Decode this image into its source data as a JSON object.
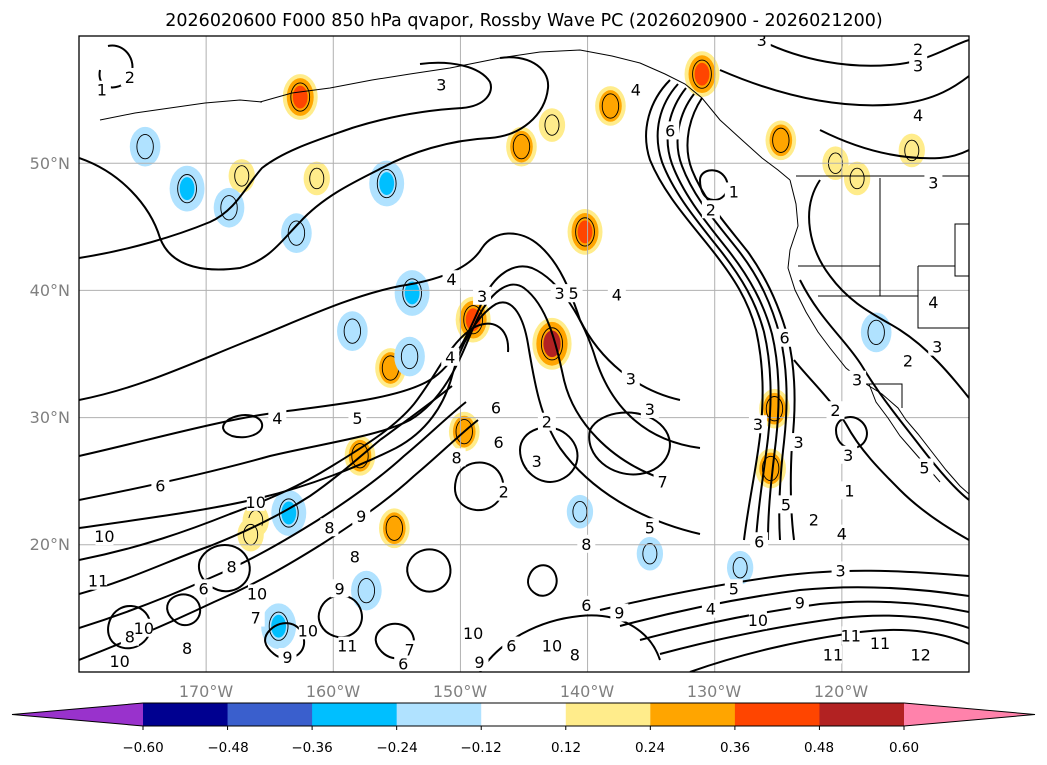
{
  "chart_data": {
    "type": "contour_map",
    "title": "2026020600 F000 850 hPa qvapor, Rossby Wave PC (2026020900 - 2026021200)",
    "variable": "850 hPa qvapor",
    "init_time": "2026020600",
    "forecast_hour": "F000",
    "filter": "Rossby Wave PC",
    "valid_window": "2026020900 - 2026021200",
    "lon_range": [
      -180,
      -110
    ],
    "lat_range": [
      10,
      60
    ],
    "lon_ticks": [
      -170,
      -160,
      -150,
      -140,
      -130,
      -120
    ],
    "lat_ticks": [
      20,
      30,
      40,
      50
    ],
    "x_tick_labels": [
      "170°W",
      "160°W",
      "150°W",
      "140°W",
      "130°W",
      "120°W"
    ],
    "y_tick_labels": [
      "20°N",
      "30°N",
      "40°N",
      "50°N"
    ],
    "grid": true,
    "colorbar": {
      "orientation": "horizontal",
      "extend": "both",
      "levels": [
        -0.6,
        -0.48,
        -0.36,
        -0.24,
        -0.12,
        0.12,
        0.24,
        0.36,
        0.48,
        0.6
      ],
      "tick_labels": [
        "−0.60",
        "−0.48",
        "−0.36",
        "−0.24",
        "−0.12",
        "0.12",
        "0.24",
        "0.36",
        "0.48",
        "0.60"
      ],
      "colors": [
        "#9932cc",
        "#000090",
        "#3a5fcd",
        "#00bfff",
        "#b0e2ff",
        "#ffffff",
        "#ffec8b",
        "#ffa500",
        "#ff4500",
        "#b22222",
        "#ff82ab"
      ]
    },
    "contour_labels": [
      {
        "text": "2",
        "lon": -176.0,
        "lat": 56.7
      },
      {
        "text": "1",
        "lon": -178.2,
        "lat": 55.7
      },
      {
        "text": "3",
        "lon": -151.5,
        "lat": 56.1
      },
      {
        "text": "4",
        "lon": -136.2,
        "lat": 55.7
      },
      {
        "text": "6",
        "lon": -133.5,
        "lat": 52.5
      },
      {
        "text": "3",
        "lon": -126.3,
        "lat": 59.6
      },
      {
        "text": "2",
        "lon": -114.0,
        "lat": 58.9
      },
      {
        "text": "3",
        "lon": -114.0,
        "lat": 57.6
      },
      {
        "text": "4",
        "lon": -114.0,
        "lat": 53.7
      },
      {
        "text": "3",
        "lon": -112.8,
        "lat": 48.4
      },
      {
        "text": "1",
        "lon": -128.5,
        "lat": 47.7
      },
      {
        "text": "2",
        "lon": -130.3,
        "lat": 46.3
      },
      {
        "text": "4",
        "lon": -150.7,
        "lat": 40.8
      },
      {
        "text": "3",
        "lon": -148.3,
        "lat": 39.5
      },
      {
        "text": "3",
        "lon": -142.2,
        "lat": 39.7
      },
      {
        "text": "5",
        "lon": -141.1,
        "lat": 39.7
      },
      {
        "text": "4",
        "lon": -137.7,
        "lat": 39.6
      },
      {
        "text": "6",
        "lon": -124.5,
        "lat": 36.2
      },
      {
        "text": "4",
        "lon": -112.8,
        "lat": 39.0
      },
      {
        "text": "3",
        "lon": -112.5,
        "lat": 35.5
      },
      {
        "text": "2",
        "lon": -114.8,
        "lat": 34.4
      },
      {
        "text": "3",
        "lon": -118.8,
        "lat": 32.9
      },
      {
        "text": "4",
        "lon": -150.8,
        "lat": 34.7
      },
      {
        "text": "3",
        "lon": -136.6,
        "lat": 33.0
      },
      {
        "text": "3",
        "lon": -135.1,
        "lat": 30.6
      },
      {
        "text": "3",
        "lon": -126.6,
        "lat": 29.4
      },
      {
        "text": "2",
        "lon": -120.5,
        "lat": 30.5
      },
      {
        "text": "4",
        "lon": -164.4,
        "lat": 29.9
      },
      {
        "text": "5",
        "lon": -158.1,
        "lat": 29.9
      },
      {
        "text": "2",
        "lon": -143.2,
        "lat": 29.6
      },
      {
        "text": "6",
        "lon": -147.2,
        "lat": 30.7
      },
      {
        "text": "6",
        "lon": -147.0,
        "lat": 28.0
      },
      {
        "text": "8",
        "lon": -150.3,
        "lat": 26.8
      },
      {
        "text": "3",
        "lon": -144.0,
        "lat": 26.5
      },
      {
        "text": "3",
        "lon": -123.4,
        "lat": 28.0
      },
      {
        "text": "3",
        "lon": -119.5,
        "lat": 27.0
      },
      {
        "text": "1",
        "lon": -119.4,
        "lat": 24.2
      },
      {
        "text": "5",
        "lon": -113.5,
        "lat": 26.0
      },
      {
        "text": "7",
        "lon": -134.1,
        "lat": 24.9
      },
      {
        "text": "6",
        "lon": -173.6,
        "lat": 24.6
      },
      {
        "text": "10",
        "lon": -166.1,
        "lat": 23.3
      },
      {
        "text": "2",
        "lon": -146.6,
        "lat": 24.1
      },
      {
        "text": "5",
        "lon": -135.1,
        "lat": 21.3
      },
      {
        "text": "6",
        "lon": -126.5,
        "lat": 20.2
      },
      {
        "text": "5",
        "lon": -124.4,
        "lat": 23.1
      },
      {
        "text": "2",
        "lon": -122.2,
        "lat": 21.9
      },
      {
        "text": "4",
        "lon": -120.0,
        "lat": 20.8
      },
      {
        "text": "10",
        "lon": -178.0,
        "lat": 20.6
      },
      {
        "text": "8",
        "lon": -140.1,
        "lat": 20.0
      },
      {
        "text": "3",
        "lon": -120.1,
        "lat": 17.9
      },
      {
        "text": "5",
        "lon": -128.5,
        "lat": 16.5
      },
      {
        "text": "9",
        "lon": -123.3,
        "lat": 15.4
      },
      {
        "text": "4",
        "lon": -130.3,
        "lat": 14.9
      },
      {
        "text": "10",
        "lon": -126.6,
        "lat": 14.0
      },
      {
        "text": "11",
        "lon": -119.3,
        "lat": 12.8
      },
      {
        "text": "11",
        "lon": -117.0,
        "lat": 12.2
      },
      {
        "text": "11",
        "lon": -120.7,
        "lat": 11.3
      },
      {
        "text": "12",
        "lon": -113.8,
        "lat": 11.3
      },
      {
        "text": "9",
        "lon": -137.5,
        "lat": 14.6
      },
      {
        "text": "10",
        "lon": -149.0,
        "lat": 13.0
      },
      {
        "text": "10",
        "lon": -142.8,
        "lat": 12.0
      },
      {
        "text": "6",
        "lon": -146.0,
        "lat": 12.0
      },
      {
        "text": "9",
        "lon": -148.5,
        "lat": 10.7
      },
      {
        "text": "8",
        "lon": -141.0,
        "lat": 11.3
      },
      {
        "text": "6",
        "lon": -154.5,
        "lat": 10.6
      },
      {
        "text": "7",
        "lon": -154.0,
        "lat": 11.7
      },
      {
        "text": "8",
        "lon": -168.0,
        "lat": 18.2
      },
      {
        "text": "10",
        "lon": -166.0,
        "lat": 16.1
      },
      {
        "text": "6",
        "lon": -170.2,
        "lat": 16.5
      },
      {
        "text": "9",
        "lon": -159.5,
        "lat": 16.5
      },
      {
        "text": "10",
        "lon": -162.0,
        "lat": 13.2
      },
      {
        "text": "9",
        "lon": -163.6,
        "lat": 11.1
      },
      {
        "text": "8",
        "lon": -176.0,
        "lat": 12.7
      },
      {
        "text": "7",
        "lon": -166.1,
        "lat": 14.2
      },
      {
        "text": "10",
        "lon": -176.8,
        "lat": 10.8
      },
      {
        "text": "11",
        "lon": -158.9,
        "lat": 12.0
      },
      {
        "text": "11",
        "lon": -178.5,
        "lat": 17.1
      },
      {
        "text": "8",
        "lon": -158.3,
        "lat": 19.0
      },
      {
        "text": "6",
        "lon": -140.1,
        "lat": 15.2
      },
      {
        "text": "9",
        "lon": -157.8,
        "lat": 22.2
      },
      {
        "text": "8",
        "lon": -160.3,
        "lat": 21.3
      },
      {
        "text": "10",
        "lon": -174.9,
        "lat": 13.4
      },
      {
        "text": "8",
        "lon": -171.5,
        "lat": 11.8
      }
    ],
    "anomaly_cells": [
      {
        "lon": -162.6,
        "lat": 55.2,
        "value": 0.36
      },
      {
        "lon": -145.2,
        "lat": 51.3,
        "value": 0.24
      },
      {
        "lon": -142.8,
        "lat": 53.0,
        "value": 0.12
      },
      {
        "lon": -138.2,
        "lat": 54.5,
        "value": 0.24
      },
      {
        "lon": -131.0,
        "lat": 57.0,
        "value": 0.36
      },
      {
        "lon": -124.8,
        "lat": 51.8,
        "value": 0.24
      },
      {
        "lon": -120.5,
        "lat": 50.0,
        "value": 0.12
      },
      {
        "lon": -114.5,
        "lat": 51.0,
        "value": 0.12
      },
      {
        "lon": -118.8,
        "lat": 48.8,
        "value": 0.12
      },
      {
        "lon": -140.2,
        "lat": 44.6,
        "value": 0.36
      },
      {
        "lon": -149.0,
        "lat": 37.7,
        "value": 0.36
      },
      {
        "lon": -142.8,
        "lat": 35.8,
        "value": 0.48
      },
      {
        "lon": -167.2,
        "lat": 49.0,
        "value": 0.12
      },
      {
        "lon": -161.3,
        "lat": 48.8,
        "value": 0.12
      },
      {
        "lon": -149.7,
        "lat": 28.9,
        "value": 0.24
      },
      {
        "lon": -157.9,
        "lat": 27.0,
        "value": 0.24
      },
      {
        "lon": -155.5,
        "lat": 33.9,
        "value": 0.24
      },
      {
        "lon": -125.3,
        "lat": 30.7,
        "value": 0.24
      },
      {
        "lon": -125.6,
        "lat": 26.0,
        "value": 0.24
      },
      {
        "lon": -166.1,
        "lat": 21.9,
        "value": 0.12
      },
      {
        "lon": -155.2,
        "lat": 21.3,
        "value": 0.24
      },
      {
        "lon": -166.5,
        "lat": 20.8,
        "value": 0.12
      },
      {
        "lon": -174.8,
        "lat": 51.3,
        "value": -0.24
      },
      {
        "lon": -171.5,
        "lat": 48.0,
        "value": -0.36
      },
      {
        "lon": -168.2,
        "lat": 46.5,
        "value": -0.24
      },
      {
        "lon": -155.8,
        "lat": 48.4,
        "value": -0.36
      },
      {
        "lon": -162.9,
        "lat": 44.5,
        "value": -0.24
      },
      {
        "lon": -153.8,
        "lat": 39.8,
        "value": -0.36
      },
      {
        "lon": -154.0,
        "lat": 34.8,
        "value": -0.24
      },
      {
        "lon": -158.5,
        "lat": 36.8,
        "value": -0.24
      },
      {
        "lon": -117.3,
        "lat": 36.7,
        "value": -0.24
      },
      {
        "lon": -163.5,
        "lat": 22.5,
        "value": -0.36
      },
      {
        "lon": -164.3,
        "lat": 13.6,
        "value": -0.36
      },
      {
        "lon": -157.4,
        "lat": 16.4,
        "value": -0.24
      },
      {
        "lon": -140.6,
        "lat": 22.6,
        "value": -0.12
      },
      {
        "lon": -135.1,
        "lat": 19.3,
        "value": -0.12
      },
      {
        "lon": -128.0,
        "lat": 18.2,
        "value": -0.12
      }
    ]
  }
}
